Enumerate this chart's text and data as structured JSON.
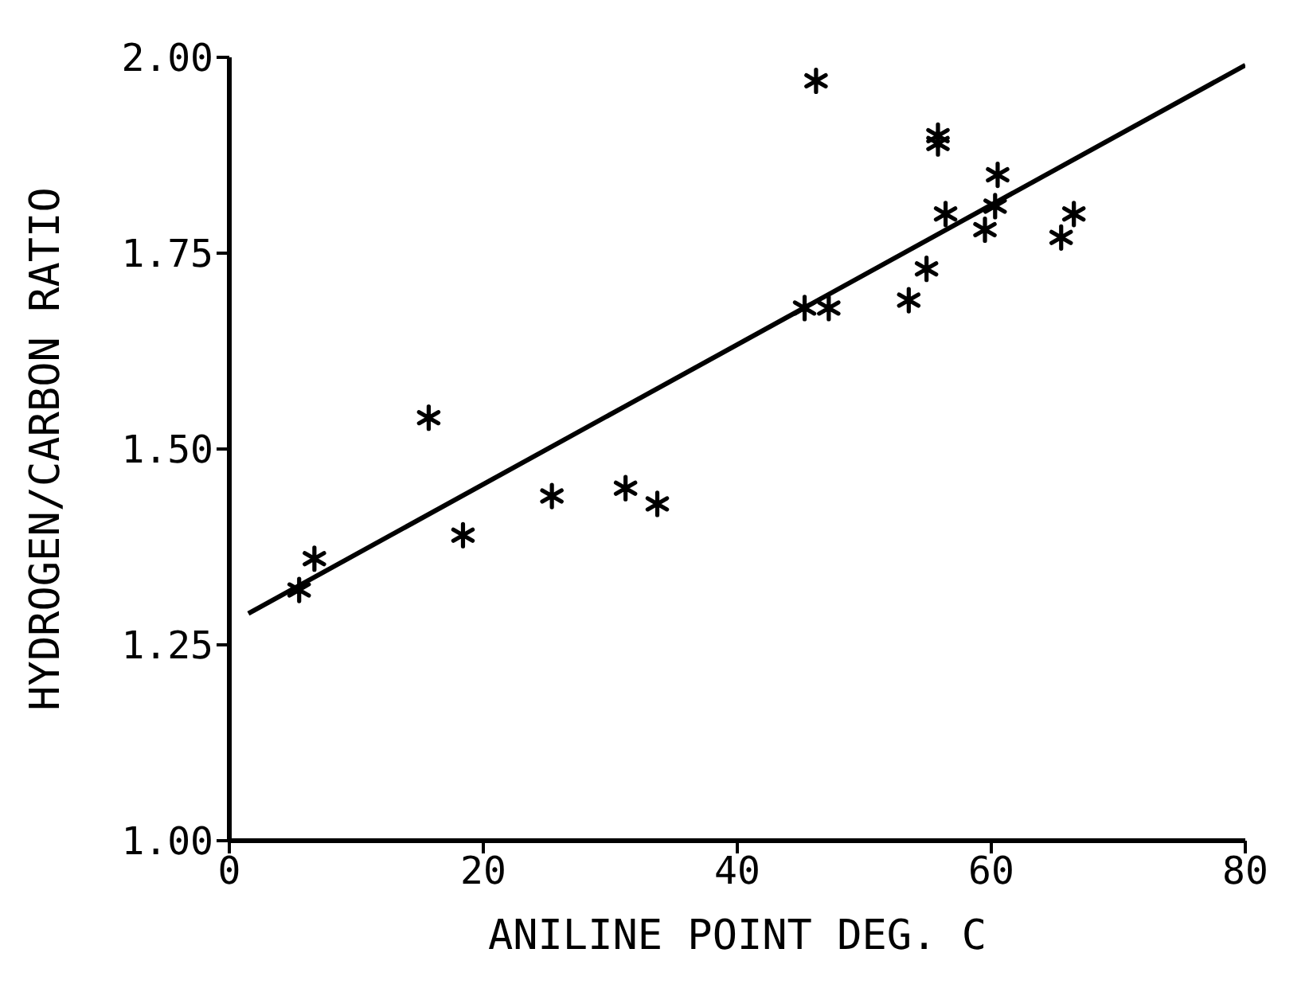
{
  "chart_data": {
    "type": "scatter",
    "xlabel": "ANILINE POINT DEG. C",
    "ylabel": "HYDROGEN/CARBON RATIO",
    "xlim": [
      0,
      80
    ],
    "xticks": [
      0,
      20,
      40,
      60,
      80
    ],
    "ylim": [
      1,
      2
    ],
    "yticks": [
      {
        "value": 1,
        "label": "1.00"
      },
      {
        "value": 1.25,
        "label": "1.25"
      },
      {
        "value": 1.5,
        "label": "1.50"
      },
      {
        "value": 1.75,
        "label": "1.75"
      },
      {
        "value": 2,
        "label": "2.00"
      }
    ],
    "grid": false,
    "marker": "cross",
    "series": [
      {
        "color": "#000000",
        "x": [
          5.5,
          6.7,
          15.7,
          18.4,
          25.4,
          31.2,
          33.7,
          45.3,
          46.2,
          47.2,
          53.5,
          54.9,
          55.8,
          55.8,
          56.4,
          59.5,
          60.3,
          60.5,
          65.5,
          66.5
        ],
        "values": [
          1.32,
          1.36,
          1.54,
          1.39,
          1.44,
          1.45,
          1.43,
          1.68,
          1.97,
          1.68,
          1.69,
          1.73,
          1.9,
          1.89,
          1.8,
          1.78,
          1.81,
          1.85,
          1.77,
          1.8
        ]
      },
      {
        "type": "line",
        "color": "#000000",
        "marker": "none",
        "x": [
          1.5,
          80
        ],
        "values": [
          1.29,
          1.99
        ]
      }
    ]
  }
}
